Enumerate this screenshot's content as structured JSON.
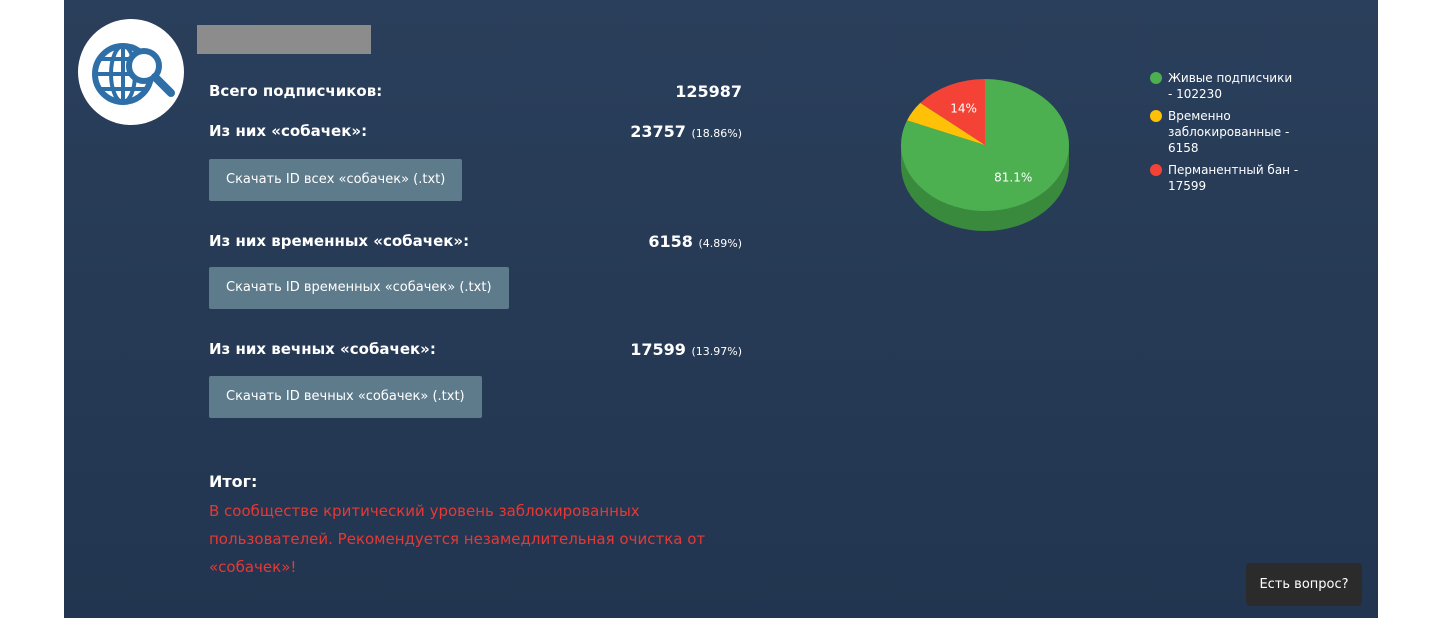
{
  "stats": [
    {
      "label": "Всего подписчиков:",
      "value": 125987
    },
    {
      "label": "Из них «собачек»:",
      "value": 23757,
      "percent": "(18.86%)",
      "button": "Скачать ID всех «собачек» (.txt)"
    },
    {
      "label": "Из них временных «собачек»:",
      "value": 6158,
      "percent": "(4.89%)",
      "button": "Скачать ID временных «собачек» (.txt)"
    },
    {
      "label": "Из них вечных «собачек»:",
      "value": 17599,
      "percent": "(13.97%)",
      "button": "Скачать ID вечных «собачек» (.txt)"
    }
  ],
  "summary": {
    "title": "Итог:",
    "text": "В сообществе критический уровень заблокированных пользователей. Рекомендуется незамедлительная очистка от «собачек»!"
  },
  "help_button": "Есть вопрос?",
  "chart_data": {
    "type": "pie",
    "categories": [
      "Живые подписчики - 102230",
      "Временно заблокированные - 6158",
      "Перманентный бан - 17599"
    ],
    "values": [
      81.1,
      4.9,
      14
    ],
    "value_labels": [
      "81.1%",
      null,
      "14%"
    ],
    "colors": [
      "#4caf50",
      "#ffc107",
      "#f44336"
    ]
  }
}
